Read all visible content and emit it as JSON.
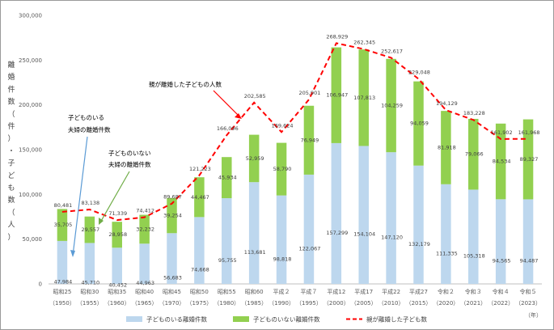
{
  "chart_data": {
    "type": "bar",
    "y_axis_label": [
      "離",
      "婚",
      "件",
      "数",
      "（",
      "件",
      "）",
      "・",
      "子",
      "ど",
      "も",
      "数",
      "（",
      "人",
      "）"
    ],
    "year_unit": "（年）",
    "ylim": [
      0,
      300000
    ],
    "yticks": [
      "0",
      "50,000",
      "100,000",
      "150,000",
      "200,000",
      "250,000",
      "300,000"
    ],
    "categories": [
      "昭和25",
      "昭和30",
      "昭和35",
      "昭和40",
      "昭和45",
      "昭和50",
      "昭和55",
      "昭和60",
      "平成２",
      "平成７",
      "平成12",
      "平成17",
      "平成22",
      "平成27",
      "令和２",
      "令和３",
      "令和４",
      "令和５"
    ],
    "years": [
      "（1950）",
      "（1955）",
      "（1960）",
      "（1965）",
      "（1970）",
      "（1975）",
      "（1980）",
      "（1985）",
      "（1990）",
      "（1995）",
      "（2000）",
      "（2005）",
      "（2010）",
      "（2015）",
      "（2020）",
      "（2021）",
      "（2022）",
      "（2023）"
    ],
    "series": [
      {
        "name": "子どものいる離婚件数",
        "color": "#bdd7ee",
        "values": [
          47984,
          45710,
          40452,
          44963,
          56683,
          74668,
          95755,
          113681,
          98818,
          122067,
          157299,
          154104,
          147120,
          132179,
          111335,
          105318,
          94565,
          94487
        ],
        "labels": [
          "47,984",
          "45,710",
          "40,452",
          "44,963",
          "56,683",
          "74,668",
          "95,755",
          "113,681",
          "98,818",
          "122,067",
          "157,299",
          "154,104",
          "147,120",
          "132,179",
          "111,335",
          "105,318",
          "94,565",
          "94,487"
        ]
      },
      {
        "name": "子どものいない離婚件数",
        "color": "#92d050",
        "values": [
          35705,
          29557,
          28958,
          32232,
          39254,
          44467,
          45934,
          52959,
          58790,
          76949,
          106947,
          107813,
          104259,
          94059,
          81918,
          79066,
          84534,
          89327
        ],
        "labels": [
          "35,705",
          "29,557",
          "28,958",
          "32,232",
          "39,254",
          "44,467",
          "45,934",
          "52,959",
          "58,790",
          "76,949",
          "106,947",
          "107,813",
          "104,259",
          "94,059",
          "81,918",
          "79,066",
          "84,534",
          "89,327"
        ]
      },
      {
        "name": "親が離婚した子ども数",
        "color": "#ff0000",
        "values": [
          80481,
          83138,
          71339,
          74412,
          89687,
          121223,
          166096,
          202585,
          169624,
          205901,
          268929,
          262345,
          252617,
          229048,
          194129,
          183228,
          161902,
          161968
        ],
        "labels": [
          "80,481",
          "83,138",
          "71,339",
          "74,412",
          "89,687",
          "121,223",
          "166,096",
          "202,585",
          "169,624",
          "205,901",
          "268,929",
          "262,345",
          "252,617",
          "229,048",
          "194,129",
          "183,228",
          "161,902",
          "161,968"
        ]
      }
    ],
    "annotations": [
      {
        "lines": [
          "子どものいる",
          "夫婦の離婚件数"
        ],
        "color": "#5b9bd5"
      },
      {
        "lines": [
          "子どものいない",
          "夫婦の離婚件数"
        ],
        "color": "#70ad47"
      },
      {
        "lines": [
          "親が離婚した子どもの人数"
        ],
        "color": "#ff0000"
      }
    ],
    "legend": [
      "子どものいる離婚件数",
      "子どものいない離婚件数",
      "親が離婚した子ども数"
    ],
    "legend_position": "bottom",
    "grid": false
  }
}
